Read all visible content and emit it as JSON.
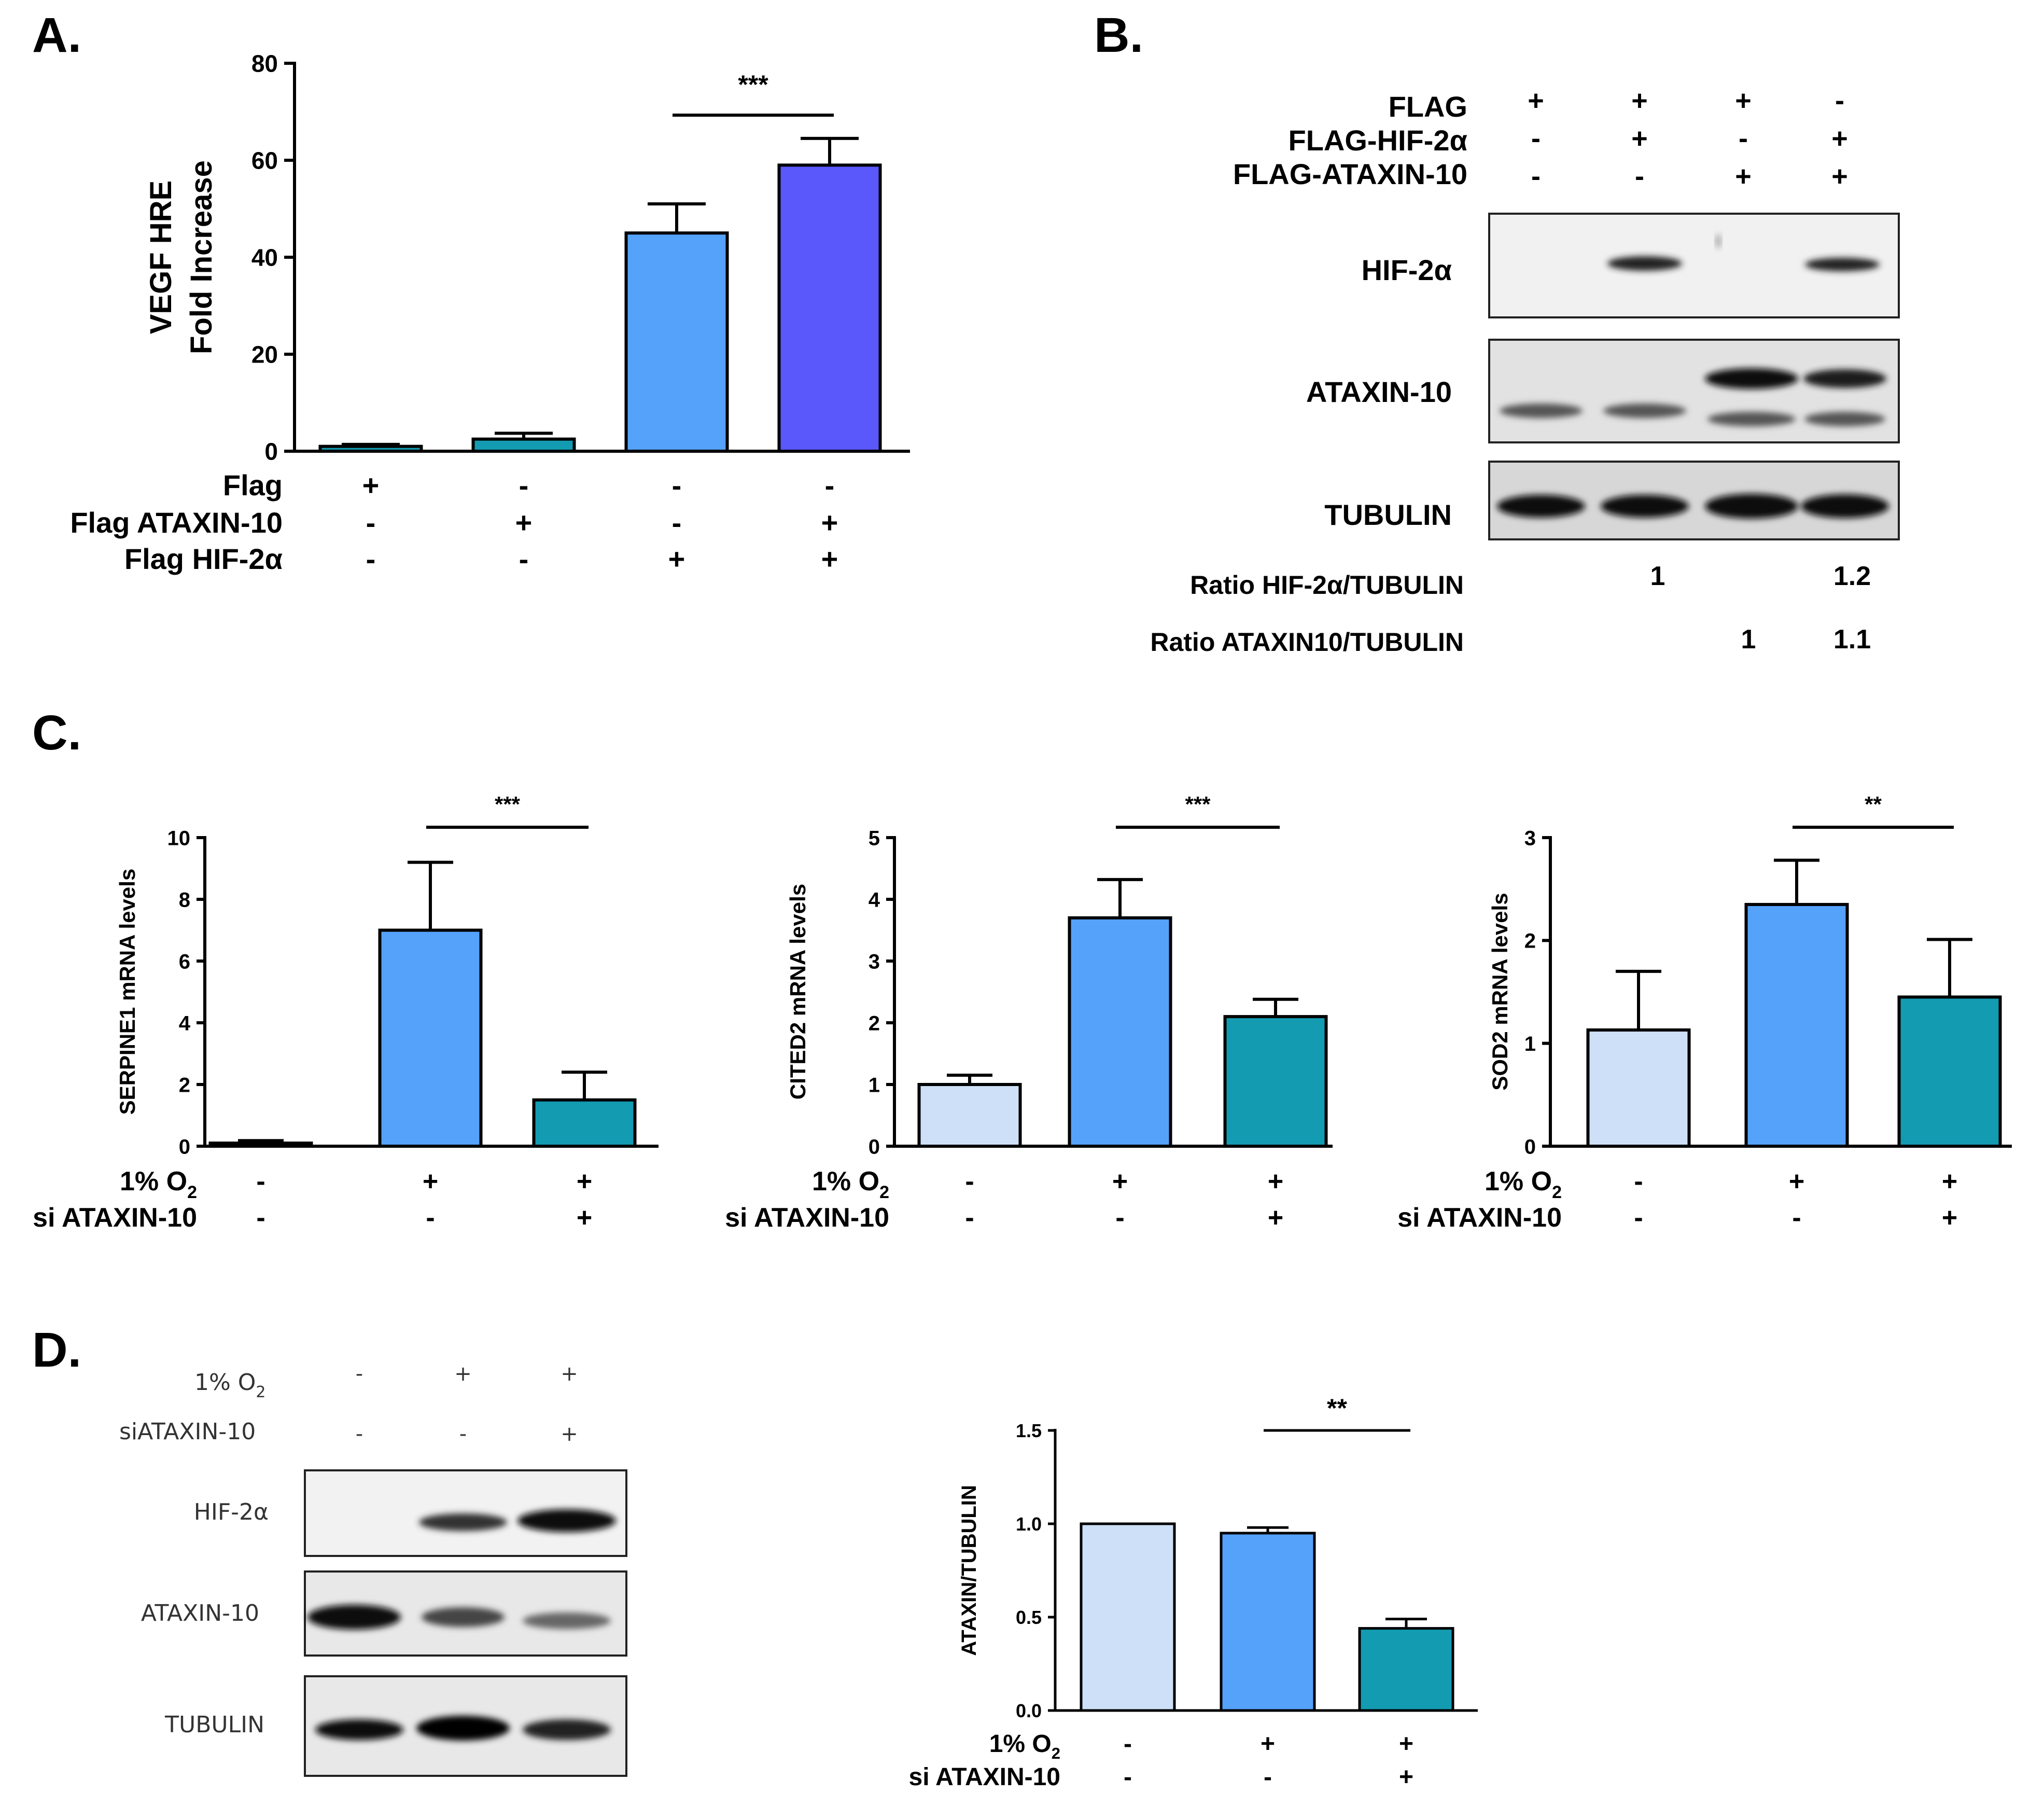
{
  "colors": {
    "very_light_blue": "#cde0f7",
    "light_blue": "#55a2fb",
    "violet_blue": "#5a58fb",
    "teal": "#139bb1",
    "black": "#000000"
  },
  "panel_labels": [
    "A.",
    "B.",
    "C.",
    "D."
  ],
  "chart_data": [
    {
      "id": "A",
      "type": "bar",
      "ylabel_lines": [
        "VEGF HRE",
        "Fold Increase"
      ],
      "ylim": [
        0,
        80
      ],
      "yticks": [
        0,
        20,
        40,
        60,
        80
      ],
      "ytick_labels": [
        "0",
        "20",
        "40",
        "60",
        "80"
      ],
      "values": [
        1,
        2.5,
        45,
        59
      ],
      "errors": [
        0.4,
        1.2,
        6,
        5.5
      ],
      "bar_colors": [
        "#139bb1",
        "#139bb1",
        "#55a2fb",
        "#5a58fb"
      ],
      "significance": {
        "from": 2,
        "to": 3,
        "label": "***"
      },
      "conditions": [
        {
          "label": "Flag",
          "signs": [
            "+",
            "-",
            "-",
            "-"
          ]
        },
        {
          "label": "Flag ATAXIN-10",
          "signs": [
            "-",
            "+",
            "-",
            "+"
          ]
        },
        {
          "label": "Flag HIF-2α",
          "signs": [
            "-",
            "-",
            "+",
            "+"
          ]
        }
      ]
    },
    {
      "id": "C1",
      "type": "bar",
      "ylabel": "SERPINE1 mRNA levels",
      "ylim": [
        0,
        10
      ],
      "yticks": [
        0,
        2,
        4,
        6,
        8,
        10
      ],
      "ytick_labels": [
        "0",
        "2",
        "4",
        "6",
        "8",
        "10"
      ],
      "values": [
        0.1,
        7,
        1.5
      ],
      "errors": [
        0.08,
        2.2,
        0.9
      ],
      "bar_colors": [
        "#cde0f7",
        "#55a2fb",
        "#139bb1"
      ],
      "significance": {
        "from": 1,
        "to": 2,
        "label": "***"
      },
      "conditions": [
        {
          "label": "1% O",
          "sub": "2",
          "signs": [
            "-",
            "+",
            "+"
          ]
        },
        {
          "label": "si ATAXIN-10",
          "signs": [
            "-",
            "-",
            "+"
          ]
        }
      ]
    },
    {
      "id": "C2",
      "type": "bar",
      "ylabel": "CITED2 mRNA levels",
      "ylim": [
        0,
        5
      ],
      "yticks": [
        0,
        1,
        2,
        3,
        4,
        5
      ],
      "ytick_labels": [
        "0",
        "1",
        "2",
        "3",
        "4",
        "5"
      ],
      "values": [
        1,
        3.7,
        2.1
      ],
      "errors": [
        0.15,
        0.62,
        0.28
      ],
      "bar_colors": [
        "#cde0f7",
        "#55a2fb",
        "#139bb1"
      ],
      "significance": {
        "from": 1,
        "to": 2,
        "label": "***"
      },
      "conditions": [
        {
          "label": "1% O",
          "sub": "2",
          "signs": [
            "-",
            "+",
            "+"
          ]
        },
        {
          "label": "si ATAXIN-10",
          "signs": [
            "-",
            "-",
            "+"
          ]
        }
      ]
    },
    {
      "id": "C3",
      "type": "bar",
      "ylabel": "SOD2 mRNA levels",
      "ylim": [
        0,
        3
      ],
      "yticks": [
        0,
        1,
        2,
        3
      ],
      "ytick_labels": [
        "0",
        "1",
        "2",
        "3"
      ],
      "values": [
        1.13,
        2.35,
        1.45
      ],
      "errors": [
        0.57,
        0.43,
        0.56
      ],
      "bar_colors": [
        "#cde0f7",
        "#55a2fb",
        "#139bb1"
      ],
      "significance": {
        "from": 1,
        "to": 2,
        "label": "**"
      },
      "conditions": [
        {
          "label": "1% O",
          "sub": "2",
          "signs": [
            "-",
            "+",
            "+"
          ]
        },
        {
          "label": "si ATAXIN-10",
          "signs": [
            "-",
            "-",
            "+"
          ]
        }
      ]
    },
    {
      "id": "D",
      "type": "bar",
      "ylabel": "ATAXIN/TUBULIN",
      "ylim": [
        0,
        1.5
      ],
      "yticks": [
        0,
        0.5,
        1.0,
        1.5
      ],
      "ytick_labels": [
        "0.0",
        "0.5",
        "1.0",
        "1.5"
      ],
      "values": [
        1.0,
        0.95,
        0.44
      ],
      "errors": [
        0,
        0.03,
        0.05
      ],
      "bar_colors": [
        "#cde0f7",
        "#55a2fb",
        "#139bb1"
      ],
      "significance": {
        "from": 1,
        "to": 2,
        "label": "**"
      },
      "conditions": [
        {
          "label": "1% O",
          "sub": "2",
          "signs": [
            "-",
            "+",
            "+"
          ]
        },
        {
          "label": "si ATAXIN-10",
          "signs": [
            "-",
            "-",
            "+"
          ]
        }
      ]
    }
  ],
  "blots": {
    "B": {
      "rows": [
        {
          "label": "FLAG",
          "signs": [
            "+",
            "+",
            "+",
            "-"
          ]
        },
        {
          "label": "FLAG-HIF-2α",
          "signs": [
            "-",
            "+",
            "-",
            "+"
          ]
        },
        {
          "label": "FLAG-ATAXIN-10",
          "signs": [
            "-",
            "-",
            "+",
            "+"
          ]
        }
      ],
      "band_labels": [
        "HIF-2α",
        "ATAXIN-10",
        "TUBULIN"
      ],
      "ratios": [
        {
          "label": "Ratio HIF-2α/TUBULIN",
          "values": [
            "",
            "1",
            "",
            "1.2"
          ]
        },
        {
          "label": "Ratio ATAXIN10/TUBULIN",
          "values": [
            "",
            "",
            "1",
            "1.1"
          ]
        }
      ]
    },
    "D": {
      "rows": [
        {
          "label": "1%  O",
          "sub": "2",
          "signs": [
            "-",
            "+",
            "+"
          ]
        },
        {
          "label": "siATAXIN-10",
          "signs": [
            "-",
            "-",
            "+"
          ]
        }
      ],
      "band_labels": [
        "HIF-2α",
        "ATAXIN-10",
        "TUBULIN"
      ]
    }
  }
}
